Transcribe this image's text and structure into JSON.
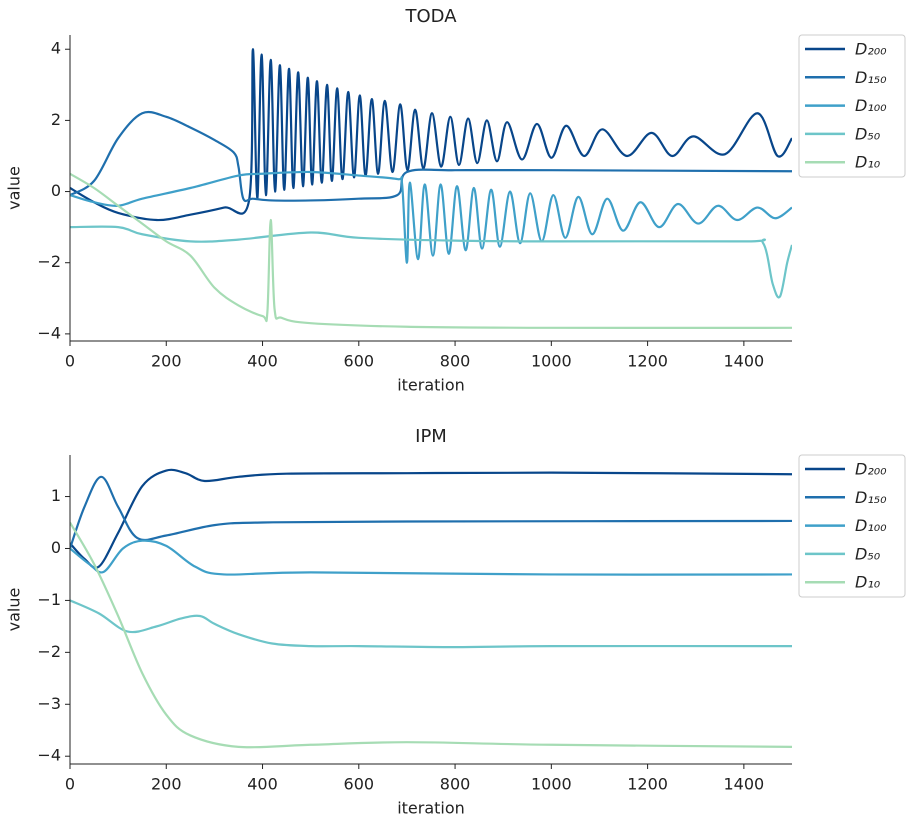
{
  "chart_data": [
    {
      "type": "line",
      "title": "TODA",
      "xlabel": "iteration",
      "ylabel": "value",
      "xlim": [
        0,
        1500
      ],
      "ylim": [
        -4.2,
        4.4
      ],
      "xticks": [
        0,
        200,
        400,
        600,
        800,
        1000,
        1200,
        1400
      ],
      "yticks": [
        {
          "value": -4,
          "label": "−4"
        },
        {
          "value": -2,
          "label": "−2"
        },
        0,
        2,
        4
      ],
      "series": [
        {
          "name": "D₂₀₀",
          "color": "#08468a",
          "x": [
            0,
            50,
            100,
            180,
            250,
            320,
            372,
            380,
            389,
            398,
            407,
            417,
            426,
            436,
            445,
            455,
            464,
            474,
            484,
            494,
            503,
            513,
            523,
            534,
            544,
            555,
            566,
            578,
            590,
            602,
            614,
            627,
            640,
            654,
            670,
            686,
            701,
            717,
            734,
            752,
            771,
            790,
            808,
            827,
            846,
            866,
            887,
            908,
            939,
            970,
            1000,
            1031,
            1068,
            1106,
            1157,
            1208,
            1251,
            1295,
            1361,
            1428,
            1470,
            1500
          ],
          "values": [
            0.1,
            -0.3,
            -0.6,
            -0.8,
            -0.65,
            -0.45,
            -0.25,
            4.0,
            -0.2,
            3.85,
            -0.1,
            3.7,
            0,
            3.55,
            0.05,
            3.45,
            0.1,
            3.35,
            0.15,
            3.2,
            0.2,
            3.1,
            0.25,
            3.0,
            0.3,
            2.9,
            0.35,
            2.8,
            0.4,
            2.7,
            0.45,
            2.6,
            0.5,
            2.55,
            0.55,
            2.45,
            0.6,
            2.3,
            0.65,
            2.2,
            0.7,
            2.1,
            0.75,
            2.05,
            0.8,
            2.0,
            0.85,
            1.95,
            0.9,
            1.9,
            0.95,
            1.85,
            1.0,
            1.75,
            1.0,
            1.65,
            1.0,
            1.55,
            1.05,
            2.2,
            1.0,
            1.5
          ]
        },
        {
          "name": "D₁₅₀",
          "color": "#1f6fad",
          "x": [
            0,
            50,
            100,
            150,
            200,
            250,
            300,
            340,
            350,
            360,
            380,
            420,
            500,
            600,
            680,
            700,
            800,
            1000,
            1500
          ],
          "values": [
            -0.1,
            0.3,
            1.5,
            2.2,
            2.1,
            1.8,
            1.45,
            1.1,
            0.7,
            -0.2,
            -0.2,
            -0.25,
            -0.25,
            -0.2,
            -0.1,
            0.55,
            0.6,
            0.6,
            0.57
          ]
        },
        {
          "name": "D₁₀₀",
          "color": "#3fa0c9",
          "x": [
            0,
            50,
            100,
            150,
            250,
            350,
            400,
            500,
            600,
            680,
            690,
            700,
            706,
            723,
            737,
            754,
            770,
            787,
            804,
            822,
            839,
            856,
            875,
            893,
            914,
            935,
            956,
            980,
            1004,
            1029,
            1056,
            1085,
            1116,
            1149,
            1185,
            1224,
            1263,
            1305,
            1346,
            1386,
            1428,
            1465,
            1500
          ],
          "values": [
            -0.1,
            -0.3,
            -0.4,
            -0.2,
            0.1,
            0.45,
            0.5,
            0.55,
            0.45,
            0.35,
            0.2,
            -2.0,
            0.25,
            -1.9,
            0.2,
            -1.8,
            0.2,
            -1.75,
            0.15,
            -1.65,
            0.1,
            -1.6,
            0.05,
            -1.55,
            0,
            -1.45,
            -0.05,
            -1.4,
            -0.1,
            -1.3,
            -0.15,
            -1.2,
            -0.2,
            -1.1,
            -0.3,
            -1.0,
            -0.35,
            -0.9,
            -0.4,
            -0.8,
            -0.45,
            -0.75,
            -0.45
          ]
        },
        {
          "name": "D₅₀",
          "color": "#6dc5c9",
          "x": [
            0,
            100,
            150,
            250,
            350,
            500,
            600,
            800,
            1000,
            1400,
            1440,
            1460,
            1475,
            1490,
            1500
          ],
          "values": [
            -1.0,
            -1.0,
            -1.2,
            -1.4,
            -1.35,
            -1.15,
            -1.3,
            -1.38,
            -1.4,
            -1.4,
            -1.45,
            -2.6,
            -2.95,
            -2.0,
            -1.5
          ]
        },
        {
          "name": "D₁₀",
          "color": "#a6dcb4",
          "x": [
            0,
            50,
            100,
            150,
            200,
            250,
            300,
            350,
            400,
            410,
            417,
            425,
            440,
            500,
            700,
            1000,
            1500
          ],
          "values": [
            0.5,
            0.1,
            -0.4,
            -0.9,
            -1.4,
            -1.8,
            -2.7,
            -3.2,
            -3.5,
            -3.4,
            -0.8,
            -3.3,
            -3.55,
            -3.7,
            -3.8,
            -3.83,
            -3.83
          ]
        }
      ]
    },
    {
      "type": "line",
      "title": "IPM",
      "xlabel": "iteration",
      "ylabel": "value",
      "xlim": [
        0,
        1500
      ],
      "ylim": [
        -4.15,
        1.8
      ],
      "xticks": [
        0,
        200,
        400,
        600,
        800,
        1000,
        1200,
        1400
      ],
      "yticks": [
        {
          "value": -4,
          "label": "−4"
        },
        {
          "value": -3,
          "label": "−3"
        },
        {
          "value": -2,
          "label": "−2"
        },
        {
          "value": -1,
          "label": "−1"
        },
        0,
        1
      ],
      "series": [
        {
          "name": "D₂₀₀",
          "color": "#08468a",
          "x": [
            0,
            30,
            60,
            100,
            150,
            200,
            240,
            280,
            350,
            450,
            700,
            1000,
            1500
          ],
          "values": [
            0.1,
            -0.2,
            -0.35,
            0.3,
            1.2,
            1.5,
            1.45,
            1.3,
            1.38,
            1.44,
            1.45,
            1.46,
            1.43
          ]
        },
        {
          "name": "D₁₅₀",
          "color": "#1f6fad",
          "x": [
            0,
            30,
            65,
            100,
            140,
            200,
            300,
            400,
            700,
            1500
          ],
          "values": [
            0.0,
            0.8,
            1.38,
            0.8,
            0.2,
            0.25,
            0.45,
            0.5,
            0.52,
            0.53
          ]
        },
        {
          "name": "D₁₀₀",
          "color": "#3fa0c9",
          "x": [
            0,
            40,
            70,
            110,
            150,
            200,
            260,
            320,
            500,
            1000,
            1500
          ],
          "values": [
            0.0,
            -0.3,
            -0.45,
            0,
            0.15,
            0.05,
            -0.35,
            -0.5,
            -0.46,
            -0.5,
            -0.5
          ]
        },
        {
          "name": "D₅₀",
          "color": "#6dc5c9",
          "x": [
            0,
            60,
            120,
            180,
            230,
            270,
            300,
            350,
            420,
            500,
            600,
            800,
            1000,
            1500
          ],
          "values": [
            -1.0,
            -1.25,
            -1.6,
            -1.5,
            -1.35,
            -1.3,
            -1.45,
            -1.65,
            -1.83,
            -1.88,
            -1.88,
            -1.9,
            -1.88,
            -1.88
          ]
        },
        {
          "name": "D₁₀",
          "color": "#a6dcb4",
          "x": [
            0,
            50,
            100,
            150,
            200,
            250,
            350,
            500,
            700,
            1000,
            1500
          ],
          "values": [
            0.5,
            -0.3,
            -1.3,
            -2.4,
            -3.2,
            -3.6,
            -3.82,
            -3.78,
            -3.73,
            -3.78,
            -3.82
          ]
        }
      ]
    }
  ]
}
